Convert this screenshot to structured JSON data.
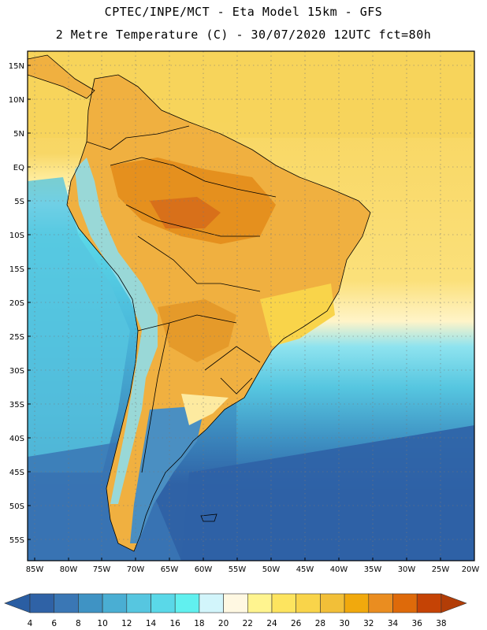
{
  "titles": {
    "line1": "CPTEC/INPE/MCT -  Eta Model 15km - GFS",
    "line2": "2 Metre Temperature (C) - 30/07/2020 12UTC fct=80h"
  },
  "map": {
    "lat_labels": [
      "15N",
      "10N",
      "5N",
      "EQ",
      "5S",
      "10S",
      "15S",
      "20S",
      "25S",
      "30S",
      "35S",
      "40S",
      "45S",
      "50S",
      "55S"
    ],
    "lon_labels": [
      "85W",
      "80W",
      "75W",
      "70W",
      "65W",
      "60W",
      "55W",
      "50W",
      "45W",
      "40W",
      "35W",
      "30W",
      "25W",
      "20W"
    ]
  },
  "colorbar": {
    "labels": [
      "4",
      "6",
      "8",
      "10",
      "12",
      "14",
      "16",
      "18",
      "20",
      "22",
      "24",
      "26",
      "28",
      "30",
      "32",
      "34",
      "36",
      "38"
    ],
    "colors": [
      "#2f62a6",
      "#3a77b5",
      "#3f93c4",
      "#4aaed3",
      "#56c6e0",
      "#5ad8e8",
      "#61f0ef",
      "#d2f5fb",
      "#fff8e2",
      "#fff48f",
      "#fde45f",
      "#f9d44a",
      "#f2bf38",
      "#f1a90d",
      "#ea8d20",
      "#de6a0a",
      "#c54305"
    ],
    "left_arrow_color": "#2a5ea3",
    "right_arrow_color": "#b23d07"
  }
}
